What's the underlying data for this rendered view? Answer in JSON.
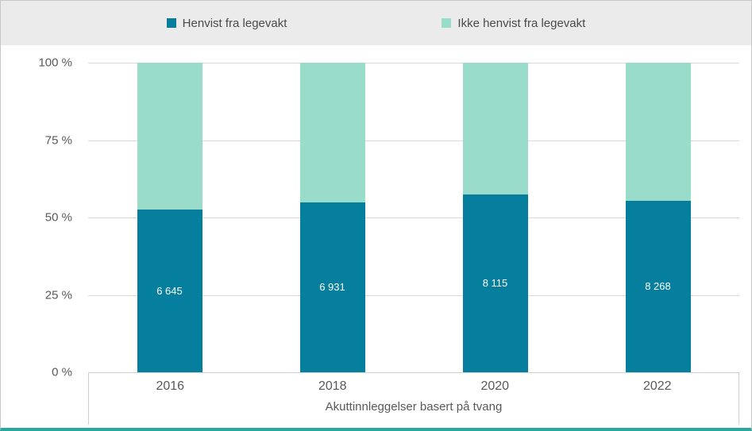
{
  "colors": {
    "series_dark": "#067e9e",
    "series_light": "#99dcc9",
    "legend_background": "#ebebeb",
    "gridline": "#d9d9d9",
    "axis_text": "#595959",
    "bottom_accent": "#2ba69e"
  },
  "chart_data": {
    "type": "bar",
    "subtype": "stacked-100-percent-column",
    "categories": [
      "2016",
      "2018",
      "2020",
      "2022"
    ],
    "series": [
      {
        "name": "Henvist fra legevakt",
        "color": "#067e9e",
        "percent": [
          52.5,
          55,
          57.5,
          55.5
        ],
        "labels": [
          "6 645",
          "6 931",
          "8 115",
          "8 268"
        ],
        "values": [
          6645,
          6931,
          8115,
          8268
        ]
      },
      {
        "name": "Ikke henvist fra legevakt",
        "color": "#99dcc9",
        "percent": [
          47.5,
          45,
          42.5,
          44.5
        ]
      }
    ],
    "yticks": [
      "100 %",
      "75 %",
      "50 %",
      "25 %",
      "0 %"
    ],
    "ytick_positions": [
      0,
      25,
      50,
      75,
      100
    ],
    "ylim": [
      0,
      100
    ],
    "xlabel": "Akuttinnleggelser basert på tvang",
    "grid": true,
    "legend_position": "top"
  }
}
